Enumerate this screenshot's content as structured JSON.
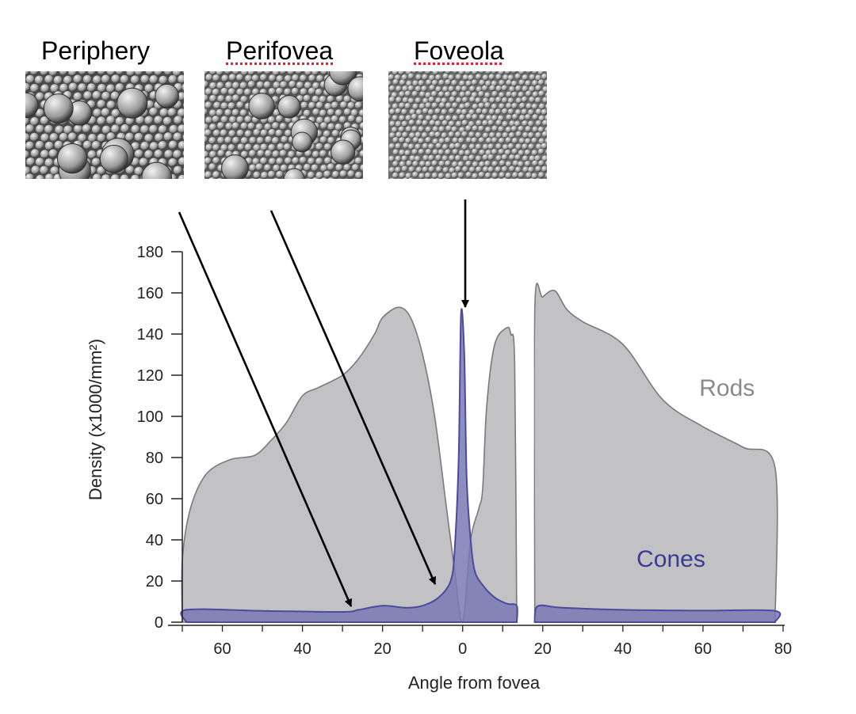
{
  "micrographs": [
    {
      "label": "Periphery"
    },
    {
      "label": "Perifovea"
    },
    {
      "label": "Foveola"
    }
  ],
  "chart_data": {
    "type": "area",
    "xlabel": "Angle from fovea",
    "ylabel": "Density (x1000/mm²)",
    "ylim": [
      0,
      180
    ],
    "y_ticks": [
      0,
      20,
      40,
      60,
      80,
      100,
      120,
      140,
      160,
      180
    ],
    "x_tick_labels": [
      "60",
      "40",
      "20",
      "0",
      "20",
      "40",
      "60",
      "80"
    ],
    "x_tick_values": [
      -60,
      -40,
      -20,
      0,
      20,
      40,
      60,
      80
    ],
    "xlim": [
      -70,
      80
    ],
    "blind_spot": [
      14,
      18
    ],
    "grid": false,
    "series": [
      {
        "name": "Rods",
        "color": "#c2c2c4",
        "segments": [
          [
            [
              -70,
              0
            ],
            [
              -70,
              30
            ],
            [
              -68,
              55
            ],
            [
              -64,
              72
            ],
            [
              -58,
              79
            ],
            [
              -52,
              81
            ],
            [
              -48,
              88
            ],
            [
              -44,
              97
            ],
            [
              -40,
              110
            ],
            [
              -36,
              114
            ],
            [
              -30,
              120
            ],
            [
              -26,
              128
            ],
            [
              -22,
              140
            ],
            [
              -20,
              148
            ],
            [
              -16,
              153
            ],
            [
              -13,
              148
            ],
            [
              -10,
              130
            ],
            [
              -7,
              100
            ],
            [
              -4,
              55
            ],
            [
              -2,
              25
            ],
            [
              0,
              0
            ],
            [
              2,
              40
            ],
            [
              4,
              55
            ],
            [
              5,
              65
            ],
            [
              6,
              105
            ],
            [
              8,
              135
            ],
            [
              11,
              143
            ],
            [
              12,
              140
            ],
            [
              13,
              125
            ],
            [
              13.5,
              0
            ]
          ],
          [
            [
              18,
              0
            ],
            [
              18,
              152
            ],
            [
              20,
              158
            ],
            [
              23,
              161
            ],
            [
              26,
              152
            ],
            [
              30,
              146
            ],
            [
              40,
              135
            ],
            [
              50,
              108
            ],
            [
              60,
              95
            ],
            [
              70,
              85
            ],
            [
              78,
              75
            ],
            [
              78,
              0
            ]
          ]
        ]
      },
      {
        "name": "Cones",
        "color": "#4b4a9c",
        "fill": "#7a79b5",
        "segments": [
          [
            [
              -69,
              0
            ],
            [
              -69,
              6
            ],
            [
              -50,
              5.5
            ],
            [
              -30,
              5
            ],
            [
              -26,
              6
            ],
            [
              -20,
              8
            ],
            [
              -14,
              7
            ],
            [
              -10,
              8
            ],
            [
              -6,
              12
            ],
            [
              -3,
              20
            ],
            [
              -2,
              35
            ],
            [
              -1,
              80
            ],
            [
              -0.4,
              150
            ],
            [
              0.4,
              130
            ],
            [
              1,
              70
            ],
            [
              2,
              40
            ],
            [
              3,
              25
            ],
            [
              5,
              18
            ],
            [
              8,
              12
            ],
            [
              11,
              9
            ],
            [
              13.5,
              8
            ],
            [
              13.5,
              0
            ]
          ],
          [
            [
              18,
              0
            ],
            [
              18,
              3
            ],
            [
              19,
              8
            ],
            [
              25,
              7
            ],
            [
              40,
              6
            ],
            [
              60,
              5.6
            ],
            [
              78,
              5.5
            ],
            [
              78,
              0
            ]
          ]
        ]
      }
    ],
    "annotations": [
      {
        "text": "Rods",
        "x": 66,
        "y": 110,
        "color": "#8a8a8a"
      },
      {
        "text": "Cones",
        "x": 52,
        "y": 27,
        "color": "#3a3a96"
      }
    ]
  }
}
